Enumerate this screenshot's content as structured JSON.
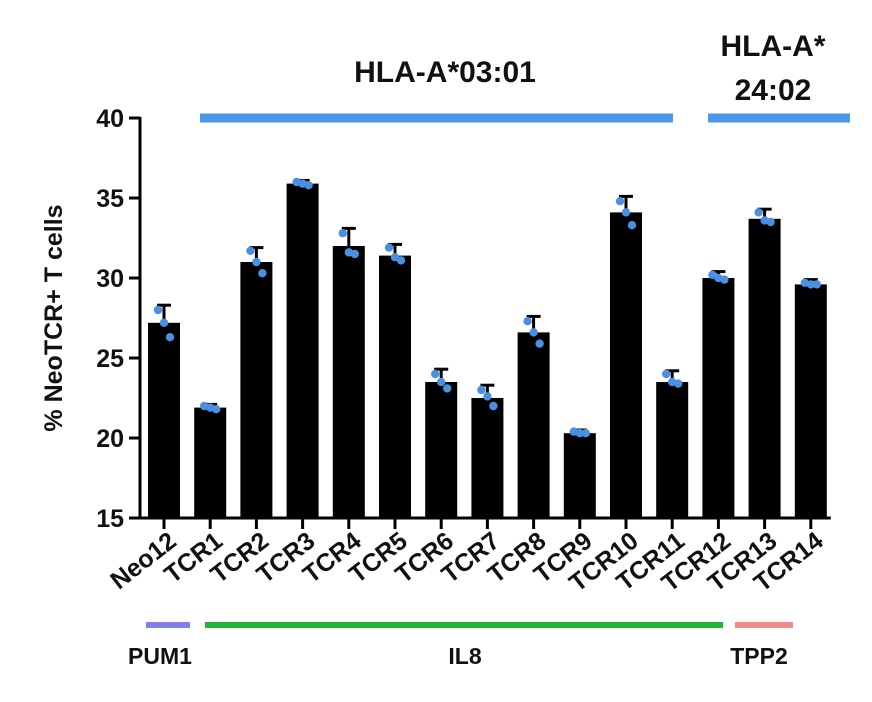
{
  "chart_data": {
    "type": "bar",
    "ylabel": "% NeoTCR+ T cells",
    "ylim": [
      15,
      40
    ],
    "yticks": [
      15,
      20,
      25,
      30,
      35,
      40
    ],
    "grid": false,
    "categories": [
      "Neo12",
      "TCR1",
      "TCR2",
      "TCR3",
      "TCR4",
      "TCR5",
      "TCR6",
      "TCR7",
      "TCR8",
      "TCR9",
      "TCR10",
      "TCR11",
      "TCR12",
      "TCR13",
      "TCR14"
    ],
    "values": [
      27.2,
      21.9,
      31.0,
      35.9,
      32.0,
      31.4,
      23.5,
      22.5,
      26.6,
      20.3,
      34.1,
      23.5,
      30.0,
      33.7,
      29.6
    ],
    "errors": [
      1.1,
      0.2,
      0.9,
      0.2,
      1.1,
      0.7,
      0.8,
      0.8,
      1.0,
      0.2,
      1.0,
      0.7,
      0.4,
      0.6,
      0.3
    ],
    "points": [
      [
        28.0,
        27.2,
        26.3
      ],
      [
        22.0,
        21.9,
        21.8
      ],
      [
        31.7,
        31.0,
        30.3
      ],
      [
        36.0,
        35.9,
        35.8
      ],
      [
        32.8,
        31.6,
        31.5
      ],
      [
        31.9,
        31.3,
        31.1
      ],
      [
        24.0,
        23.5,
        23.1
      ],
      [
        23.0,
        22.6,
        22.0
      ],
      [
        27.3,
        26.6,
        25.9
      ],
      [
        20.4,
        20.3,
        20.3
      ],
      [
        34.8,
        34.1,
        33.3
      ],
      [
        24.0,
        23.5,
        23.4
      ],
      [
        30.2,
        30.0,
        29.9
      ],
      [
        34.1,
        33.6,
        33.5
      ],
      [
        29.7,
        29.6,
        29.6
      ]
    ],
    "bar_color": "#000000",
    "point_color": "#4a90e2",
    "top_groups": [
      {
        "label": "HLA-A*03:01",
        "from": 1,
        "to": 11,
        "color": "#4a98e8"
      },
      {
        "label_lines": [
          "HLA-A*",
          "24:02"
        ],
        "from": 12,
        "to": 14,
        "color": "#4a98e8"
      }
    ],
    "bottom_groups": [
      {
        "label": "PUM1",
        "from": 0,
        "to": 0,
        "color": "#8080e8"
      },
      {
        "label": "IL8",
        "from": 1,
        "to": 11,
        "color": "#22b43a"
      },
      {
        "label": "TPP2",
        "from": 12,
        "to": 14,
        "color": "#f08a8a"
      }
    ]
  }
}
